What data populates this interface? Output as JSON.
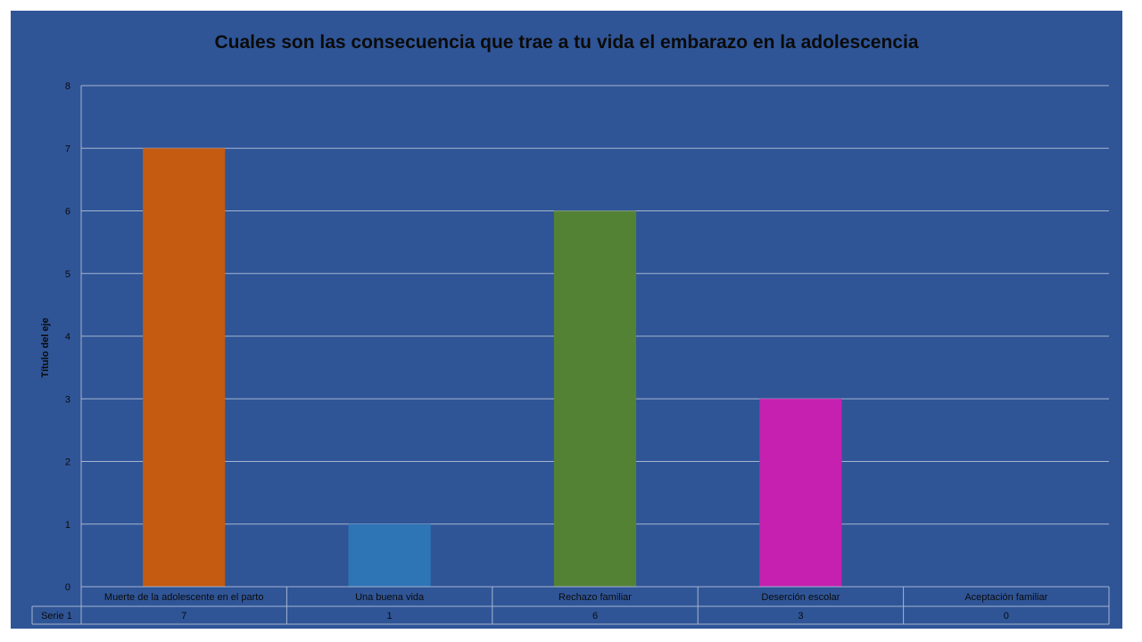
{
  "chart_data": {
    "type": "bar",
    "title": "Cuales son las consecuencia que trae a tu vida el embarazo en la adolescencia",
    "ylabel": "Título del eje",
    "xlabel": "",
    "categories": [
      "Muerte de la adolescente en el parto",
      "Una buena vida",
      "Rechazo familiar",
      "Deserción escolar",
      "Aceptación familiar"
    ],
    "series": [
      {
        "name": "Serie 1",
        "values": [
          7,
          1,
          6,
          3,
          0
        ],
        "colors": [
          "#c55a11",
          "#2e75b6",
          "#548235",
          "#c520b0",
          "#2f5597"
        ]
      }
    ],
    "ylim": [
      0,
      8
    ],
    "yticks": [
      "0",
      "1",
      "2",
      "3",
      "4",
      "5",
      "6",
      "7",
      "8"
    ],
    "grid": true,
    "data_table": true,
    "colors": {
      "background": "#2f5597",
      "gridline": "#a6b4cf",
      "text": "#0b0b0b"
    }
  }
}
